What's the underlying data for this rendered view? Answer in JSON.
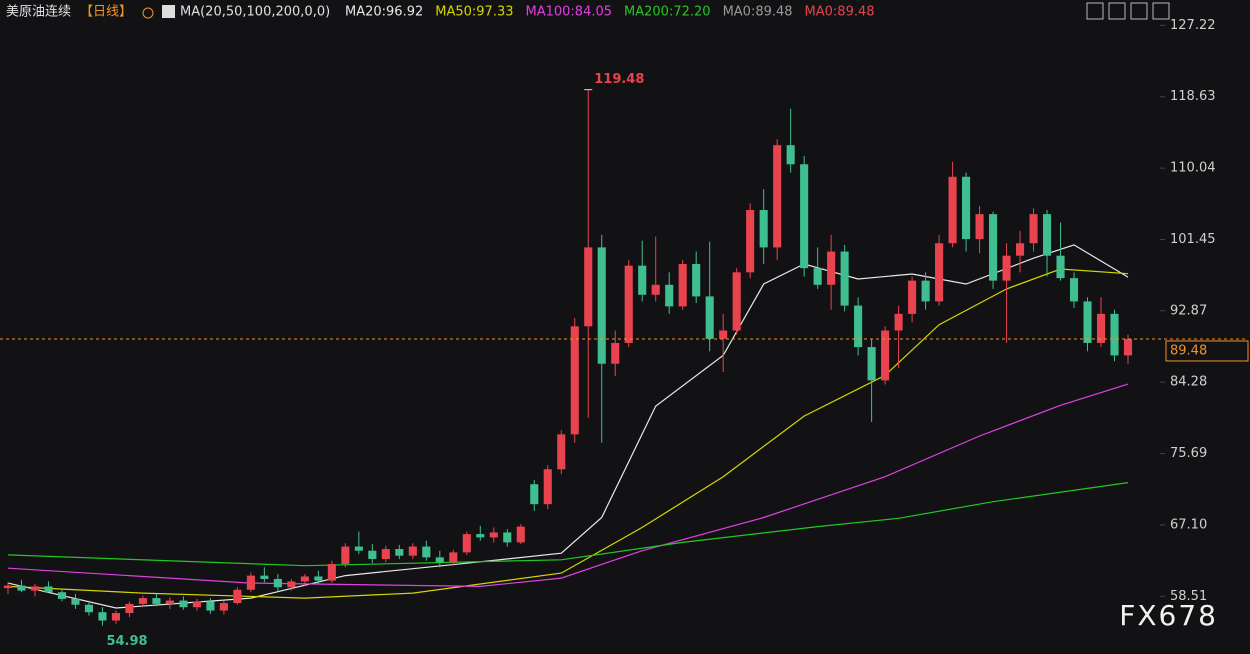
{
  "header": {
    "symbol": "美原油连续",
    "period": "【日线】",
    "ma_params": "MA(20,50,100,200,0,0)",
    "indicators": [
      {
        "text": "MA20:96.92",
        "color": "#e8e8e8"
      },
      {
        "text": "MA50:97.33",
        "color": "#d6d600"
      },
      {
        "text": "MA100:84.05",
        "color": "#e040e0"
      },
      {
        "text": "MA200:72.20",
        "color": "#22c822"
      },
      {
        "text": "MA0:89.48",
        "color": "#9a9a9a"
      },
      {
        "text": "MA0:89.48",
        "color": "#e8434f"
      }
    ]
  },
  "watermark": "FX678",
  "chart_data": {
    "type": "candlestick",
    "up_color": "#e8434f",
    "down_color": "#3fbf90",
    "open": [
      59.5,
      59.8,
      59.2,
      59.7,
      59.0,
      58.2,
      57.5,
      56.6,
      55.6,
      56.5,
      57.6,
      58.3,
      57.6,
      58.0,
      57.2,
      57.9,
      56.8,
      57.7,
      59.3,
      61.0,
      60.6,
      59.6,
      60.3,
      60.9,
      60.4,
      62.4,
      64.5,
      64.0,
      63.0,
      64.2,
      63.4,
      64.5,
      63.2,
      62.6,
      63.8,
      66.0,
      65.6,
      66.2,
      65.0,
      72.0,
      69.6,
      73.8,
      78.0,
      91.0,
      100.5,
      86.5,
      89.0,
      98.3,
      94.8,
      96.0,
      93.4,
      98.5,
      94.6,
      89.5,
      90.5,
      97.5,
      105.0,
      100.5,
      112.8,
      110.5,
      98.0,
      96.0,
      100.0,
      93.5,
      88.5,
      84.5,
      90.5,
      92.5,
      96.5,
      94.0,
      101.0,
      109.0,
      101.5,
      104.5,
      96.5,
      99.5,
      101.0,
      104.5,
      99.5,
      96.8,
      94.0,
      89.0,
      92.5,
      87.5
    ],
    "high": [
      60.2,
      60.5,
      60.0,
      60.3,
      59.4,
      58.8,
      58.0,
      57.2,
      56.8,
      57.9,
      58.6,
      58.8,
      58.4,
      58.5,
      58.2,
      58.3,
      58.0,
      59.6,
      61.4,
      62.0,
      61.2,
      60.6,
      61.2,
      61.6,
      62.8,
      64.9,
      66.3,
      64.8,
      64.6,
      64.7,
      64.9,
      65.2,
      64.0,
      64.1,
      66.3,
      67.0,
      66.8,
      66.6,
      67.2,
      72.5,
      74.3,
      78.5,
      92.0,
      119.48,
      102.0,
      90.5,
      99.0,
      101.3,
      101.8,
      97.5,
      99.0,
      100.0,
      101.2,
      92.5,
      98.0,
      105.8,
      107.5,
      113.5,
      117.2,
      111.5,
      100.5,
      102.0,
      100.8,
      94.5,
      89.5,
      91.0,
      93.5,
      97.0,
      97.5,
      102.0,
      110.8,
      109.5,
      105.5,
      104.8,
      101.0,
      102.5,
      105.2,
      105.0,
      103.5,
      97.5,
      94.5,
      94.5,
      93.0,
      90.0
    ],
    "low": [
      58.8,
      59.0,
      58.5,
      59.1,
      57.9,
      57.0,
      56.2,
      54.98,
      55.2,
      56.0,
      57.2,
      57.3,
      57.0,
      56.9,
      56.8,
      56.4,
      56.3,
      57.5,
      59.0,
      60.2,
      59.1,
      59.2,
      59.8,
      60.0,
      60.1,
      62.0,
      63.6,
      62.5,
      62.6,
      63.0,
      63.0,
      62.8,
      62.0,
      62.2,
      63.5,
      65.2,
      65.0,
      64.5,
      64.8,
      68.8,
      69.0,
      73.2,
      77.0,
      80.0,
      77.0,
      85.0,
      88.5,
      94.0,
      94.0,
      92.5,
      93.0,
      93.8,
      88.0,
      85.5,
      90.0,
      96.8,
      98.5,
      99.0,
      109.5,
      97.0,
      95.5,
      93.0,
      92.8,
      87.5,
      79.5,
      84.0,
      86.0,
      91.5,
      93.0,
      93.5,
      100.5,
      100.0,
      99.8,
      95.5,
      89.0,
      97.5,
      100.0,
      97.0,
      96.5,
      93.2,
      88.0,
      88.5,
      86.8,
      86.5
    ],
    "close": [
      59.8,
      59.2,
      59.7,
      59.0,
      58.2,
      57.5,
      56.6,
      55.6,
      56.5,
      57.6,
      58.3,
      57.6,
      58.0,
      57.2,
      57.9,
      56.8,
      57.7,
      59.3,
      61.0,
      60.6,
      59.6,
      60.3,
      60.9,
      60.4,
      62.4,
      64.5,
      64.0,
      63.0,
      64.2,
      63.4,
      64.5,
      63.2,
      62.6,
      63.8,
      66.0,
      65.6,
      66.2,
      65.0,
      66.9,
      69.6,
      73.8,
      78.0,
      91.0,
      100.5,
      86.5,
      89.0,
      98.3,
      94.8,
      96.0,
      93.4,
      98.5,
      94.6,
      89.5,
      90.5,
      97.5,
      105.0,
      100.5,
      112.8,
      110.5,
      98.0,
      96.0,
      100.0,
      93.5,
      88.5,
      84.5,
      90.5,
      92.5,
      96.5,
      94.0,
      101.0,
      109.0,
      101.5,
      104.5,
      96.5,
      99.5,
      101.0,
      104.5,
      99.5,
      96.8,
      94.0,
      89.0,
      92.5,
      87.5,
      89.48
    ],
    "lines": [
      {
        "color": "#e8e8e8",
        "x": [
          0,
          8,
          18,
          25,
          34,
          41,
          44,
          48,
          53,
          56,
          59,
          63,
          67,
          71,
          76,
          79,
          83
        ],
        "values": [
          60.1,
          57.1,
          58.3,
          61.0,
          62.5,
          63.7,
          68.0,
          81.4,
          87.5,
          96.1,
          98.5,
          96.7,
          97.3,
          96.1,
          99.2,
          100.8,
          96.92
        ]
      },
      {
        "color": "#d6d600",
        "x": [
          0,
          10,
          22,
          30,
          41,
          47,
          53,
          59,
          65,
          69,
          74,
          78,
          83
        ],
        "values": [
          59.7,
          58.9,
          58.3,
          58.9,
          61.3,
          66.8,
          72.9,
          80.2,
          85.1,
          91.2,
          95.5,
          97.9,
          97.33
        ]
      },
      {
        "color": "#e040e0",
        "x": [
          0,
          18,
          35,
          41,
          47,
          56,
          65,
          72,
          78,
          83
        ],
        "values": [
          61.9,
          60.1,
          59.7,
          60.7,
          64.0,
          68.0,
          72.9,
          77.8,
          81.5,
          84.05
        ]
      },
      {
        "color": "#22c822",
        "x": [
          0,
          22,
          41,
          50,
          60,
          66,
          73,
          83
        ],
        "values": [
          63.5,
          62.2,
          62.9,
          65.0,
          66.9,
          67.9,
          69.9,
          72.2
        ]
      }
    ],
    "ylim": [
      51.57,
      130.27
    ],
    "yticks": [
      58.51,
      {
        "value": 67.1,
        "label": "67.10"
      },
      75.69,
      84.28,
      92.87,
      101.45,
      110.04,
      118.63,
      127.22
    ],
    "last_price_color": "#f0932b"
  }
}
